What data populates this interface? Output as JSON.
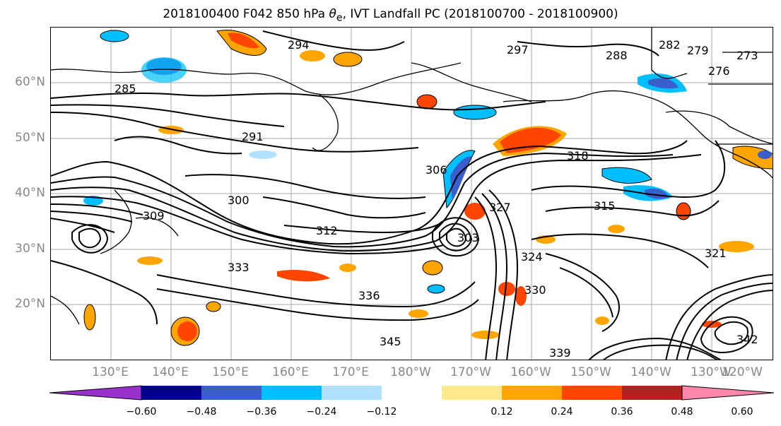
{
  "title": {
    "prefix": "2018100400 F042 850 hPa ",
    "theta": "θ",
    "sub": "e",
    "suffix": ", IVT Landfall PC (2018100700 - 2018100900)"
  },
  "lat_labels": [
    "60°N",
    "50°N",
    "40°N",
    "30°N",
    "20°N"
  ],
  "lon_labels": [
    "130°E",
    "140°E",
    "150°E",
    "160°E",
    "170°E",
    "180°W",
    "170°W",
    "160°W",
    "150°W",
    "140°W",
    "130°W",
    "120°W"
  ],
  "contour_labels": [
    "285",
    "291",
    "294",
    "297",
    "300",
    "312",
    "318",
    "315",
    "306",
    "309",
    "324",
    "327",
    "330",
    "333",
    "336",
    "339",
    "342",
    "345",
    "288",
    "282",
    "279",
    "276",
    "273",
    "303",
    "321"
  ],
  "colorbar": {
    "ticks": [
      "−0.60",
      "−0.48",
      "−0.36",
      "−0.24",
      "−0.12",
      "0.12",
      "0.24",
      "0.36",
      "0.48",
      "0.60"
    ],
    "colors": [
      "#9932CC",
      "#00008B",
      "#3A5FCD",
      "#00BFFF",
      "#B0E2FF",
      "#FFFFFF",
      "#FFE98C",
      "#FFA500",
      "#FF4500",
      "#B22222",
      "#FF88AA"
    ]
  }
}
